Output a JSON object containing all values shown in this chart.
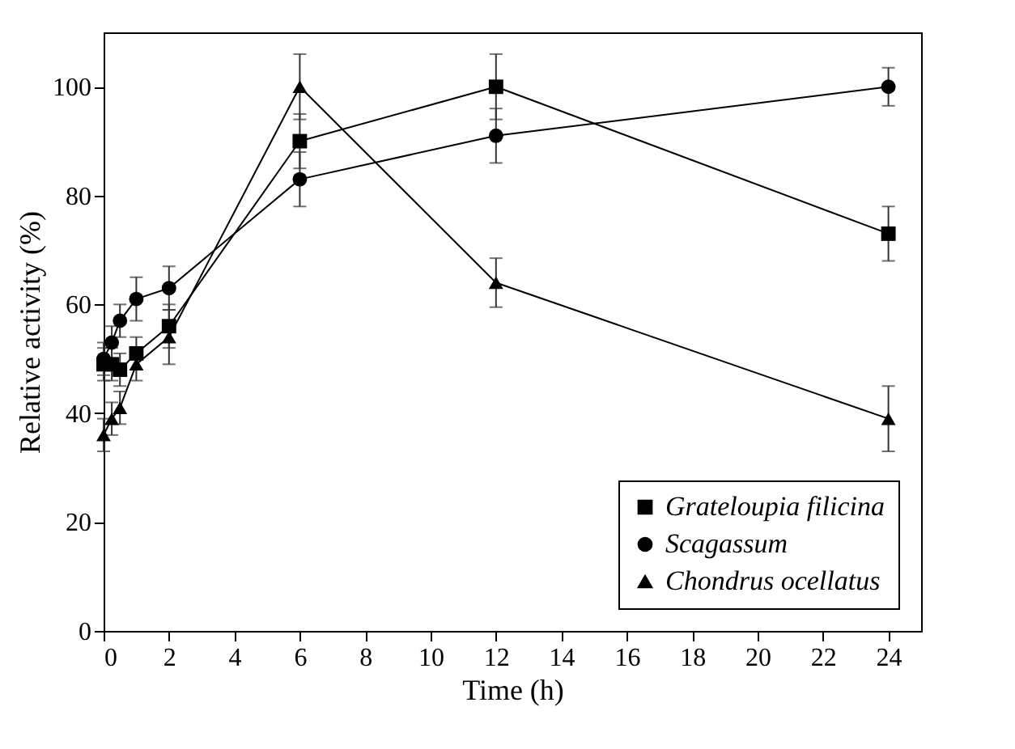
{
  "chart_data": {
    "type": "line",
    "xlabel": "Time (h)",
    "ylabel": "Relative activity (%)",
    "x": [
      0,
      0.25,
      0.5,
      1,
      2,
      6,
      12,
      24
    ],
    "series": [
      {
        "name": "Grateloupia filicina",
        "color": "#000000",
        "marker": "square",
        "values": [
          49,
          49,
          48,
          51,
          56,
          90,
          100,
          73
        ],
        "errors": [
          3,
          3,
          3,
          3,
          4,
          5,
          6,
          5
        ]
      },
      {
        "name": "Scagassum",
        "color": "#000000",
        "marker": "circle",
        "values": [
          50,
          53,
          57,
          61,
          63,
          83,
          91,
          100
        ],
        "errors": [
          3,
          3,
          3,
          4,
          4,
          5,
          5,
          3.5
        ]
      },
      {
        "name": "Chondrus ocellatus",
        "color": "#000000",
        "marker": "triangle",
        "values": [
          36,
          39,
          41,
          49,
          54,
          100,
          64,
          39
        ],
        "errors": [
          3,
          3,
          3,
          3,
          5,
          6,
          4.5,
          6
        ]
      }
    ],
    "xlim": [
      0,
      25
    ],
    "xticks": [
      0,
      2,
      4,
      6,
      8,
      10,
      12,
      14,
      16,
      18,
      20,
      22,
      24
    ],
    "ylim": [
      0,
      110
    ],
    "yticks": [
      0,
      20,
      40,
      60,
      80,
      100
    ],
    "grid": false,
    "legend": "bottom right",
    "line_style": "solid"
  }
}
